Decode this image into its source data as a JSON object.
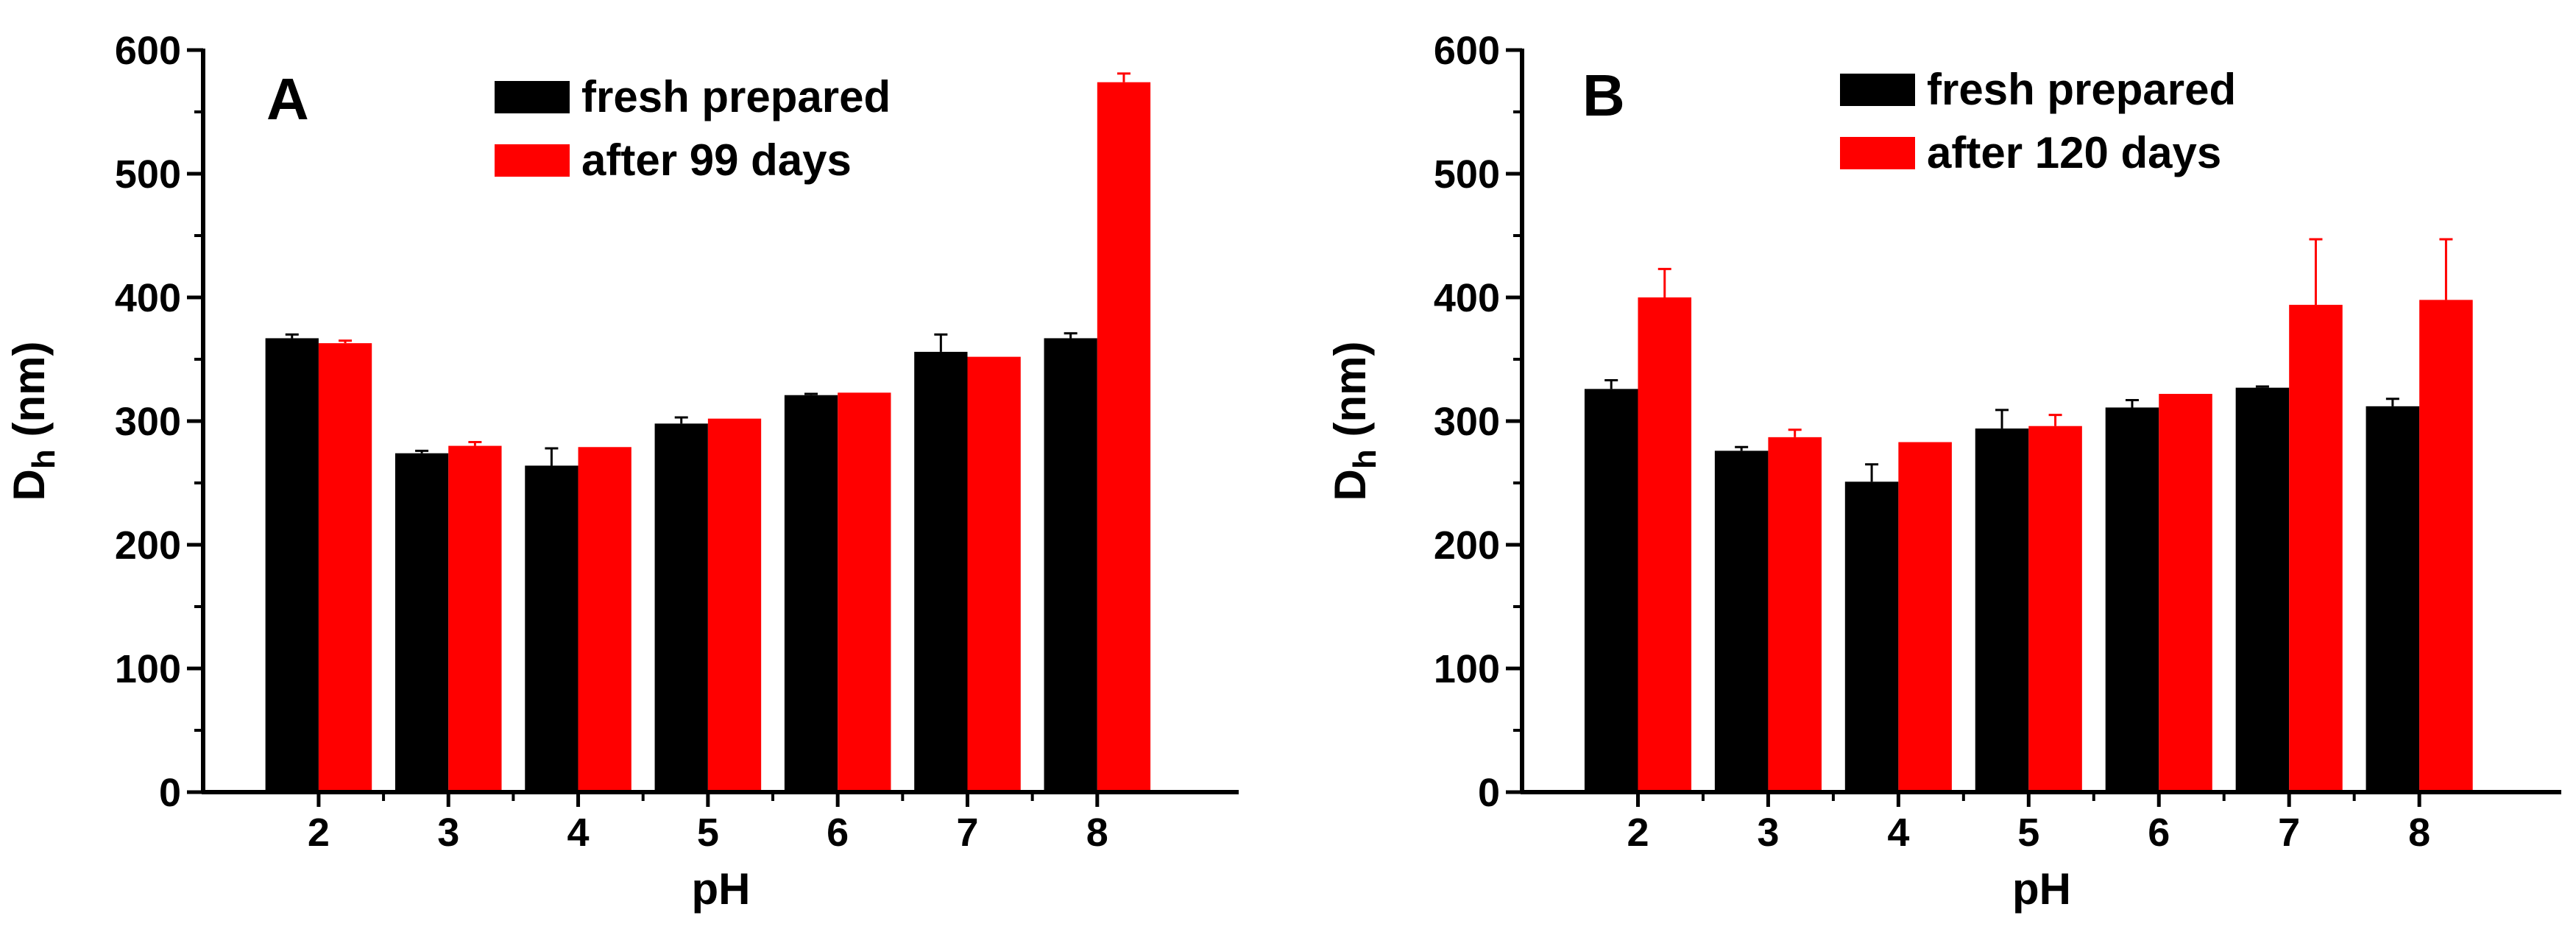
{
  "chart_data": [
    {
      "type": "bar",
      "panel_label": "A",
      "categories": [
        "2",
        "3",
        "4",
        "5",
        "6",
        "7",
        "8"
      ],
      "xlabel": "pH",
      "ylabel_main": "D",
      "ylabel_sub": "h",
      "ylabel_unit": " (nm)",
      "ylim": [
        0,
        600
      ],
      "yticks": [
        0,
        100,
        200,
        300,
        400,
        500,
        600
      ],
      "legend_position": "top-center",
      "series": [
        {
          "name": "fresh prepared",
          "color": "#000000",
          "values": [
            367,
            274,
            264,
            298,
            321,
            356,
            367
          ],
          "errors": [
            3,
            2,
            14,
            5,
            1,
            14,
            4
          ]
        },
        {
          "name": "after 99 days",
          "color": "#ff0000",
          "values": [
            363,
            280,
            279,
            302,
            323,
            352,
            574
          ],
          "errors": [
            2,
            3,
            0,
            0,
            0,
            0,
            7
          ]
        }
      ]
    },
    {
      "type": "bar",
      "panel_label": "B",
      "categories": [
        "2",
        "3",
        "4",
        "5",
        "6",
        "7",
        "8"
      ],
      "xlabel": "pH",
      "ylabel_main": "D",
      "ylabel_sub": "h",
      "ylabel_unit": " (nm)",
      "ylim": [
        0,
        600
      ],
      "yticks": [
        0,
        100,
        200,
        300,
        400,
        500,
        600
      ],
      "legend_position": "top-center",
      "series": [
        {
          "name": "fresh prepared",
          "color": "#000000",
          "values": [
            326,
            276,
            251,
            294,
            311,
            327,
            312
          ],
          "errors": [
            7,
            3,
            14,
            15,
            6,
            1,
            6
          ]
        },
        {
          "name": "after 120 days",
          "color": "#ff0000",
          "values": [
            400,
            287,
            283,
            296,
            322,
            394,
            398
          ],
          "errors": [
            23,
            6,
            0,
            9,
            0,
            53,
            49
          ]
        }
      ]
    }
  ]
}
